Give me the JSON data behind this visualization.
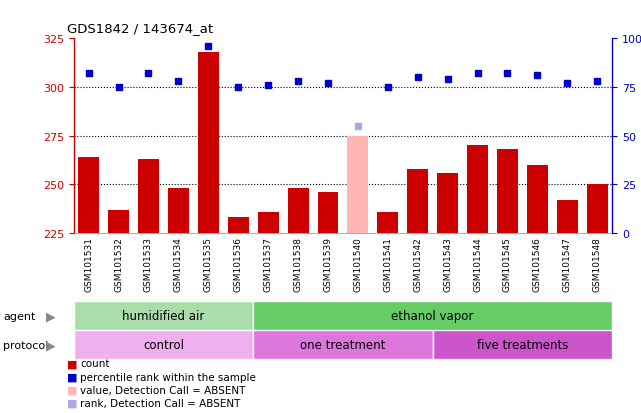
{
  "title": "GDS1842 / 143674_at",
  "samples": [
    "GSM101531",
    "GSM101532",
    "GSM101533",
    "GSM101534",
    "GSM101535",
    "GSM101536",
    "GSM101537",
    "GSM101538",
    "GSM101539",
    "GSM101540",
    "GSM101541",
    "GSM101542",
    "GSM101543",
    "GSM101544",
    "GSM101545",
    "GSM101546",
    "GSM101547",
    "GSM101548"
  ],
  "counts": [
    264,
    237,
    263,
    248,
    318,
    233,
    236,
    248,
    246,
    275,
    236,
    258,
    256,
    270,
    268,
    260,
    242,
    250
  ],
  "percentile_ranks": [
    82,
    75,
    82,
    78,
    96,
    75,
    76,
    78,
    77,
    55,
    75,
    80,
    79,
    82,
    82,
    81,
    77,
    78
  ],
  "absent_indices": [
    9
  ],
  "bar_color_normal": "#cc0000",
  "bar_color_absent": "#ffb6b6",
  "dot_color_normal": "#0000cc",
  "dot_color_absent": "#aaaadd",
  "ylim_left": [
    225,
    325
  ],
  "ylim_right": [
    0,
    100
  ],
  "yticks_left": [
    225,
    250,
    275,
    300,
    325
  ],
  "yticks_right": [
    0,
    25,
    50,
    75,
    100
  ],
  "agent_labels": [
    {
      "text": "humidified air",
      "start": 0,
      "end": 5,
      "color": "#aaddaa"
    },
    {
      "text": "ethanol vapor",
      "start": 6,
      "end": 17,
      "color": "#66cc66"
    }
  ],
  "protocol_labels": [
    {
      "text": "control",
      "start": 0,
      "end": 5,
      "color": "#f0b0f0"
    },
    {
      "text": "one treatment",
      "start": 6,
      "end": 11,
      "color": "#dd77dd"
    },
    {
      "text": "five treatments",
      "start": 12,
      "end": 17,
      "color": "#cc55cc"
    }
  ],
  "legend_items": [
    {
      "label": "count",
      "color": "#cc0000"
    },
    {
      "label": "percentile rank within the sample",
      "color": "#0000cc"
    },
    {
      "label": "value, Detection Call = ABSENT",
      "color": "#ffb6b6"
    },
    {
      "label": "rank, Detection Call = ABSENT",
      "color": "#aaaadd"
    }
  ],
  "grid_values": [
    250,
    275,
    300
  ],
  "plot_bg_color": "#ffffff",
  "xlabel_bg_color": "#cccccc",
  "spine_color_left": "#cc0000",
  "spine_color_right": "#0000cc"
}
